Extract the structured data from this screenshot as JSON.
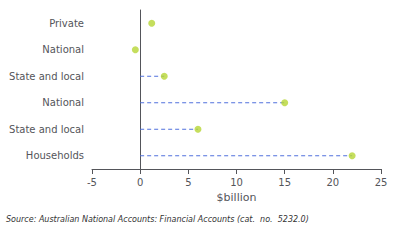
{
  "chart_data": {
    "type": "dot",
    "orientation": "horizontal",
    "categories": [
      "Private",
      "National",
      "State and local",
      "National",
      "State and local",
      "Households"
    ],
    "series": [
      {
        "type": "stem",
        "line_style": "dashed",
        "values": [
          null,
          null,
          2.5,
          15.0,
          6.0,
          22.0
        ]
      },
      {
        "type": "scatter",
        "marker": "circle",
        "values": [
          1.2,
          -0.5,
          2.5,
          15.0,
          6.0,
          22.0
        ]
      }
    ],
    "xlim": [
      -5,
      25
    ],
    "xticks": [
      -5,
      0,
      5,
      10,
      15,
      20,
      25
    ],
    "xlabel": "$billion",
    "annotations": [
      "Source: Australian National Accounts: Financial Accounts (cat.  no.  5232.0)"
    ],
    "grid": false
  }
}
